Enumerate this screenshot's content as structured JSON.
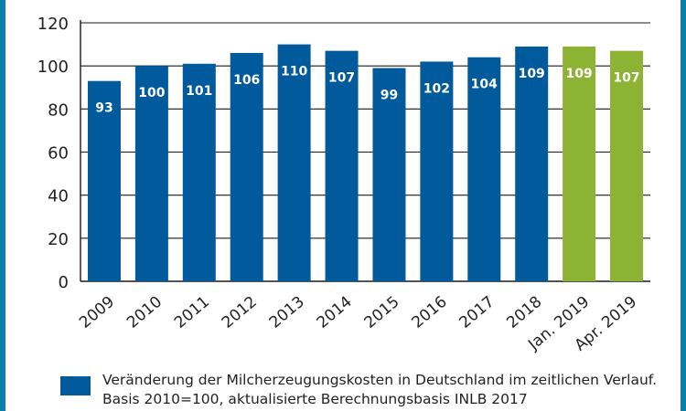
{
  "chart_data": {
    "type": "bar",
    "categories": [
      "2009",
      "2010",
      "2011",
      "2012",
      "2013",
      "2014",
      "2015",
      "2016",
      "2017",
      "2018",
      "Jan. 2019",
      "Apr. 2019"
    ],
    "values": [
      93,
      100,
      101,
      106,
      110,
      107,
      99,
      102,
      104,
      109,
      109,
      107
    ],
    "value_labels": [
      "93",
      "100",
      "101",
      "106",
      "110",
      "107",
      "99",
      "102",
      "104",
      "109",
      "109",
      "107"
    ],
    "bar_colors": [
      "#005a9c",
      "#005a9c",
      "#005a9c",
      "#005a9c",
      "#005a9c",
      "#005a9c",
      "#005a9c",
      "#005a9c",
      "#005a9c",
      "#005a9c",
      "#8db334",
      "#8db334"
    ],
    "ylim": [
      0,
      120
    ],
    "yticks": [
      0,
      20,
      40,
      60,
      80,
      100,
      120
    ],
    "grid": true,
    "legend": {
      "label": "Veränderung der Milcherzeugungskosten in Deutschland im zeitlichen Verlauf. Basis 2010=100, aktualisierte Berechnungsbasis INLB 2017",
      "color": "#005a9c",
      "position": "bottom"
    }
  },
  "colors": {
    "primary_bar": "#005a9c",
    "highlight_bar": "#8db334",
    "frame": "#0b7fa8",
    "grid": "#1a1a1a",
    "text": "#222222"
  }
}
